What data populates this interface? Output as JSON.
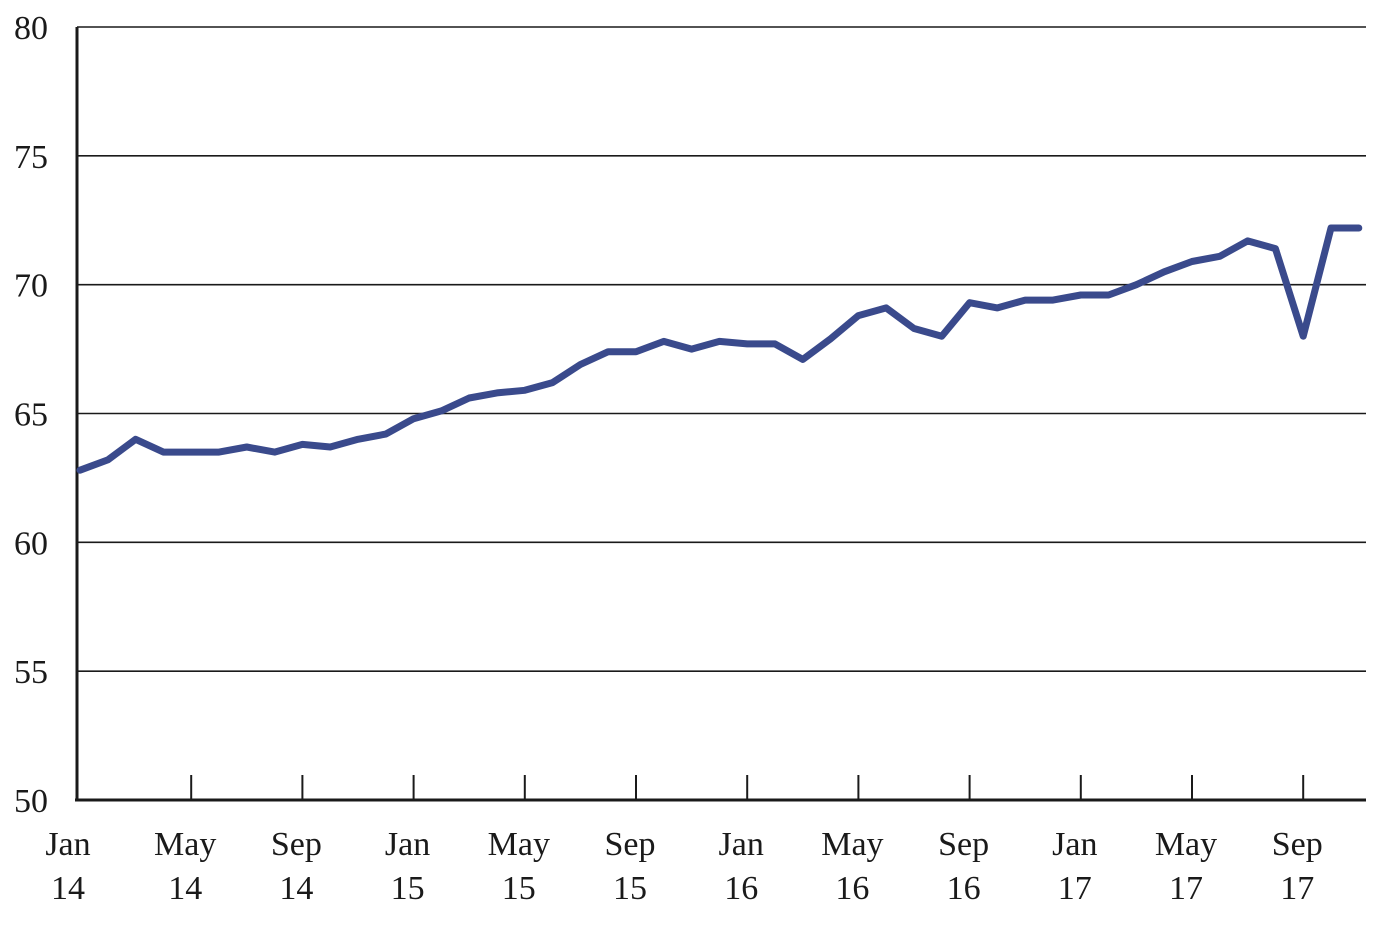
{
  "chart_data": {
    "type": "line",
    "title": "",
    "xlabel": "",
    "ylabel": "",
    "ylim": [
      50,
      80
    ],
    "y_ticks": [
      "80",
      "75",
      "70",
      "65",
      "60",
      "55",
      "50"
    ],
    "y_tick_values": [
      80,
      75,
      70,
      65,
      60,
      55,
      50
    ],
    "grid": "horizontal",
    "x_tick_labels": [
      {
        "month": "Jan",
        "year": "14",
        "index": 0
      },
      {
        "month": "May",
        "year": "14",
        "index": 4
      },
      {
        "month": "Sep",
        "year": "14",
        "index": 8
      },
      {
        "month": "Jan",
        "year": "15",
        "index": 12
      },
      {
        "month": "May",
        "year": "15",
        "index": 16
      },
      {
        "month": "Sep",
        "year": "15",
        "index": 20
      },
      {
        "month": "Jan",
        "year": "16",
        "index": 24
      },
      {
        "month": "May",
        "year": "16",
        "index": 28
      },
      {
        "month": "Sep",
        "year": "16",
        "index": 32
      },
      {
        "month": "Jan",
        "year": "17",
        "index": 36
      },
      {
        "month": "May",
        "year": "17",
        "index": 40
      },
      {
        "month": "Sep",
        "year": "17",
        "index": 44
      }
    ],
    "x": [
      "Jan 14",
      "Feb 14",
      "Mar 14",
      "Apr 14",
      "May 14",
      "Jun 14",
      "Jul 14",
      "Aug 14",
      "Sep 14",
      "Oct 14",
      "Nov 14",
      "Dec 14",
      "Jan 15",
      "Feb 15",
      "Mar 15",
      "Apr 15",
      "May 15",
      "Jun 15",
      "Jul 15",
      "Aug 15",
      "Sep 15",
      "Oct 15",
      "Nov 15",
      "Dec 15",
      "Jan 16",
      "Feb 16",
      "Mar 16",
      "Apr 16",
      "May 16",
      "Jun 16",
      "Jul 16",
      "Aug 16",
      "Sep 16",
      "Oct 16",
      "Nov 16",
      "Dec 16",
      "Jan 17",
      "Feb 17",
      "Mar 17",
      "Apr 17",
      "May 17",
      "Jun 17",
      "Jul 17",
      "Aug 17",
      "Sep 17",
      "Oct 17",
      "Nov 17"
    ],
    "series": [
      {
        "color": "#3a4a8c",
        "values": [
          62.8,
          63.2,
          64.0,
          63.5,
          63.5,
          63.5,
          63.7,
          63.5,
          63.8,
          63.7,
          64.0,
          64.2,
          64.8,
          65.1,
          65.6,
          65.8,
          65.9,
          66.2,
          66.9,
          67.4,
          67.4,
          67.8,
          67.5,
          67.8,
          67.7,
          67.7,
          67.1,
          67.9,
          68.8,
          69.1,
          68.3,
          68.0,
          69.3,
          69.1,
          69.4,
          69.4,
          69.6,
          69.6,
          70.0,
          70.5,
          70.9,
          71.1,
          71.7,
          71.4,
          68.0,
          72.2,
          72.2
        ]
      }
    ]
  }
}
